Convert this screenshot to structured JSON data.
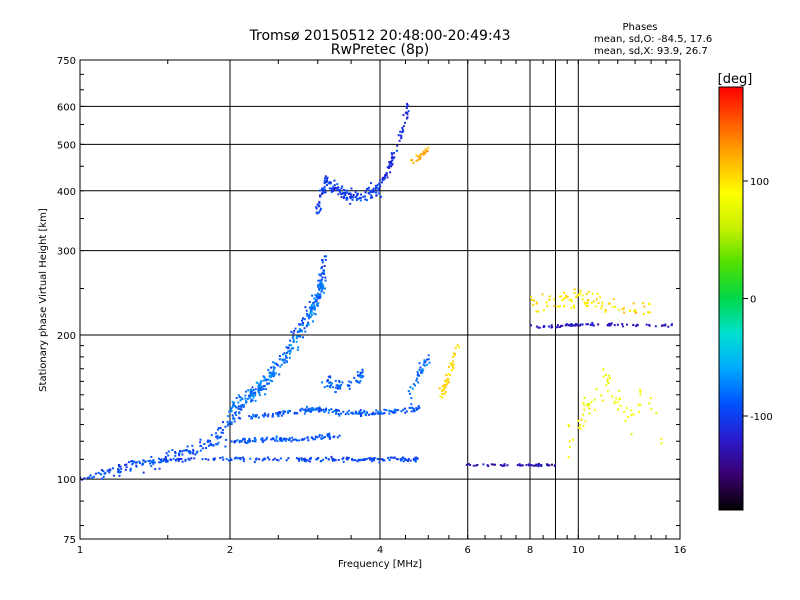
{
  "chart_data": {
    "type": "scatter",
    "title": "Tromsø 20150512 20:48:00-20:49:43",
    "subtitle": "RwPretec (8p)",
    "xlabel": "Frequency [MHz]",
    "ylabel": "Stationary phase Virtual Height [km]",
    "x_scale": "log",
    "y_scale": "log",
    "xlim": [
      1,
      16
    ],
    "ylim": [
      75,
      750
    ],
    "x_ticks": [
      1,
      2,
      4,
      6,
      8,
      10,
      16
    ],
    "x_tick_labels": [
      "1",
      "2",
      "4",
      "6",
      "8",
      "10",
      "16"
    ],
    "x_extra_gridlines": [
      9
    ],
    "y_ticks": [
      75,
      100,
      200,
      300,
      400,
      500,
      600,
      750
    ],
    "y_tick_labels": [
      "75",
      "100",
      "200",
      "300",
      "400",
      "500",
      "600",
      "750"
    ],
    "grid": true,
    "stats": {
      "heading": "Phases",
      "line_o": "mean, sd,O: -84.5, 17.6",
      "line_x": "mean, sd,X:  93.9, 26.7"
    },
    "colorbar": {
      "label": "[deg]",
      "min": -180,
      "max": 180,
      "ticks": [
        100,
        0,
        -100
      ],
      "tick_labels": [
        "100",
        "0",
        "-100"
      ],
      "colormap": [
        "#000000",
        "#3a0070",
        "#2a1acc",
        "#0050ff",
        "#00a8ff",
        "#00e0d0",
        "#00d84a",
        "#50e000",
        "#c8f000",
        "#ffff00",
        "#ffb000",
        "#ff5a00",
        "#ff0000"
      ]
    },
    "series": [
      {
        "name": "O",
        "trace_bands": [
          {
            "x": [
              1.0,
              1.1,
              1.25,
              1.45,
              1.7,
              2.0,
              2.4,
              2.8,
              3.2,
              3.6,
              4.0,
              4.4,
              4.8
            ],
            "y": [
              100,
              103,
              108,
              109,
              110,
              110,
              110,
              110,
              110,
              110,
              110,
              110,
              110
            ],
            "spread": 0.015,
            "n": 220,
            "phase": -95
          },
          {
            "x": [
              1.1,
              1.3,
              1.5,
              1.7,
              1.9,
              2.1,
              2.4,
              2.7,
              3.0,
              3.1
            ],
            "y": [
              103,
              106,
              110,
              115,
              124,
              140,
              165,
              200,
              240,
              290
            ],
            "spread": 0.05,
            "n": 260,
            "phase": -92
          },
          {
            "x": [
              2.0,
              2.3,
              2.6,
              2.9,
              3.1
            ],
            "y": [
              140,
              155,
              180,
              220,
              260
            ],
            "spread": 0.06,
            "n": 200,
            "phase": -75
          },
          {
            "x": [
              1.8,
              2.1,
              2.4,
              2.7,
              3.0,
              3.3
            ],
            "y": [
              118,
              120,
              121,
              121,
              122,
              123
            ],
            "spread": 0.02,
            "n": 110,
            "phase": -90
          },
          {
            "x": [
              2.2,
              2.5,
              2.8,
              3.0,
              3.3,
              3.7,
              4.0,
              4.4,
              4.8
            ],
            "y": [
              135,
              137,
              139,
              140,
              138,
              137,
              138,
              139,
              140
            ],
            "spread": 0.02,
            "n": 180,
            "phase": -88
          },
          {
            "x": [
              3.0,
              3.1,
              3.3,
              3.5,
              3.8,
              4.0
            ],
            "y": [
              360,
              420,
              400,
              390,
              395,
              400
            ],
            "spread": 0.05,
            "n": 160,
            "phase": -100
          },
          {
            "x": [
              4.0,
              4.2,
              4.4,
              4.6
            ],
            "y": [
              410,
              450,
              520,
              620
            ],
            "spread": 0.03,
            "n": 70,
            "phase": -110
          },
          {
            "x": [
              3.1,
              3.3,
              3.5,
              3.7
            ],
            "y": [
              160,
              155,
              160,
              165
            ],
            "spread": 0.04,
            "n": 60,
            "phase": -85
          },
          {
            "x": [
              4.6,
              4.8,
              5.0
            ],
            "y": [
              150,
              165,
              180
            ],
            "spread": 0.05,
            "n": 40,
            "phase": -80
          },
          {
            "x": [
              6.0,
              6.8,
              7.5,
              8.2,
              9.0
            ],
            "y": [
              107,
              107,
              107,
              107,
              107
            ],
            "spread": 0.008,
            "n": 55,
            "phase": -130
          },
          {
            "x": [
              7.8,
              8.6,
              9.4,
              10.0,
              11.0,
              12.5,
              14.0,
              15.5
            ],
            "y": [
              208,
              208,
              209,
              210,
              210,
              210,
              210,
              209
            ],
            "spread": 0.01,
            "n": 80,
            "phase": -120
          }
        ]
      },
      {
        "name": "X",
        "trace_bands": [
          {
            "x": [
              4.6,
              4.8,
              5.0
            ],
            "y": [
              460,
              470,
              490
            ],
            "spread": 0.02,
            "n": 25,
            "phase": 120
          },
          {
            "x": [
              5.3,
              5.5,
              5.7
            ],
            "y": [
              150,
              165,
              190
            ],
            "spread": 0.04,
            "n": 45,
            "phase": 105
          },
          {
            "x": [
              8.0,
              9.0,
              10.0,
              11.0,
              12.5,
              14.0
            ],
            "y": [
              230,
              235,
              240,
              235,
              225,
              230
            ],
            "spread": 0.07,
            "n": 90,
            "phase": 100
          },
          {
            "x": [
              9.5,
              10.5,
              11.5,
              12.5,
              13.5,
              15.0
            ],
            "y": [
              120,
              140,
              160,
              130,
              150,
              115
            ],
            "spread": 0.12,
            "n": 70,
            "phase": 85
          }
        ]
      }
    ]
  }
}
